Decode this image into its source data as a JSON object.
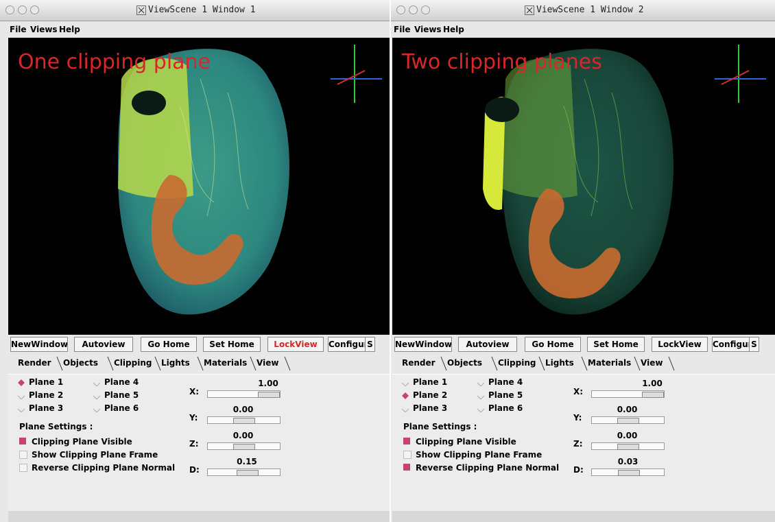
{
  "windows": [
    {
      "title": "ViewScene 1 Window 1",
      "menu": [
        "File",
        "Views",
        "Help"
      ],
      "overlay": "One clipping plane",
      "buttons": [
        "NewWindow",
        "Autoview",
        "Go Home",
        "Set Home",
        "LockView",
        "Configure",
        "S"
      ],
      "locked": true,
      "tabs": [
        "Render",
        "Objects",
        "Clipping",
        "Lights",
        "Materials",
        "View"
      ],
      "active_tab": 2,
      "planes": [
        "Plane 1",
        "Plane 2",
        "Plane 3",
        "Plane 4",
        "Plane 5",
        "Plane 6"
      ],
      "selected_plane": 0,
      "settings_label": "Plane Settings :",
      "checkboxes": [
        {
          "label": "Clipping Plane Visible",
          "checked": true
        },
        {
          "label": "Show Clipping Plane Frame",
          "checked": false
        },
        {
          "label": "Reverse Clipping Plane Normal",
          "checked": false
        }
      ],
      "sliders": [
        {
          "label": "X:",
          "value": "1.00"
        },
        {
          "label": "Y:",
          "value": "0.00"
        },
        {
          "label": "Z:",
          "value": "0.00"
        },
        {
          "label": "D:",
          "value": "0.15"
        }
      ]
    },
    {
      "title": "ViewScene 1 Window 2",
      "menu": [
        "File",
        "Views",
        "Help"
      ],
      "overlay": "Two clipping planes",
      "buttons": [
        "NewWindow",
        "Autoview",
        "Go Home",
        "Set Home",
        "LockView",
        "Configure",
        "S"
      ],
      "locked": false,
      "tabs": [
        "Render",
        "Objects",
        "Clipping",
        "Lights",
        "Materials",
        "View"
      ],
      "active_tab": 2,
      "planes": [
        "Plane 1",
        "Plane 2",
        "Plane 3",
        "Plane 4",
        "Plane 5",
        "Plane 6"
      ],
      "selected_plane": 1,
      "settings_label": "Plane Settings :",
      "checkboxes": [
        {
          "label": "Clipping Plane Visible",
          "checked": true
        },
        {
          "label": "Show Clipping Plane Frame",
          "checked": false
        },
        {
          "label": "Reverse Clipping Plane Normal",
          "checked": true
        }
      ],
      "sliders": [
        {
          "label": "X:",
          "value": "1.00"
        },
        {
          "label": "Y:",
          "value": "0.00"
        },
        {
          "label": "Z:",
          "value": "0.00"
        },
        {
          "label": "D:",
          "value": "0.03"
        }
      ]
    }
  ]
}
